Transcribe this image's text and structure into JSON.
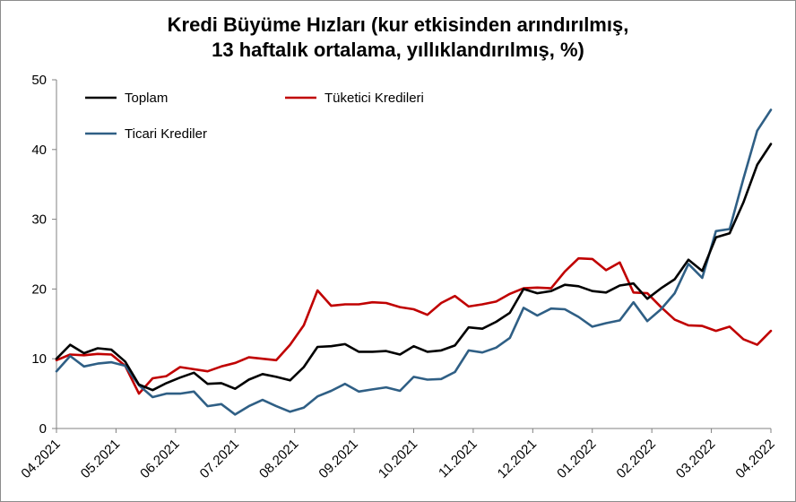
{
  "chart_data": {
    "type": "line",
    "title_line1": "Kredi Büyüme Hızları (kur etkisinden arındırılmış,",
    "title_line2": "13 haftalık ortalama, yıllıklandırılmış, %)",
    "xlabel": "",
    "ylabel": "",
    "ylim": [
      0,
      50
    ],
    "yticks": [
      0,
      10,
      20,
      30,
      40,
      50
    ],
    "grid": false,
    "legend": "top-left",
    "x_tick_labels": [
      "04.2021",
      "05.2021",
      "06.2021",
      "07.2021",
      "08.2021",
      "09.2021",
      "10.2021",
      "11.2021",
      "12.2021",
      "01.2022",
      "02.2022",
      "03.2022",
      "04.2022"
    ],
    "series": [
      {
        "name": "Toplam",
        "color": "#000000",
        "values": [
          10.0,
          12.0,
          10.8,
          11.5,
          11.3,
          9.6,
          6.3,
          5.5,
          6.5,
          7.3,
          8.0,
          6.4,
          6.5,
          5.7,
          7.0,
          7.8,
          7.4,
          6.9,
          8.8,
          11.7,
          11.8,
          12.1,
          11.0,
          11.0,
          11.1,
          10.6,
          11.8,
          11.0,
          11.2,
          11.9,
          14.5,
          14.3,
          15.3,
          16.6,
          20.0,
          19.4,
          19.7,
          20.6,
          20.4,
          19.7,
          19.5,
          20.5,
          20.8,
          18.6,
          20.1,
          21.4,
          24.2,
          22.6,
          27.4,
          28.0,
          32.4,
          37.8,
          40.8
        ]
      },
      {
        "name": "Tüketici Kredileri",
        "color": "#c00000",
        "values": [
          9.8,
          10.6,
          10.5,
          10.7,
          10.6,
          9.0,
          5.0,
          7.2,
          7.5,
          8.8,
          8.5,
          8.2,
          8.9,
          9.4,
          10.2,
          10.0,
          9.8,
          12.0,
          14.8,
          19.8,
          17.6,
          17.8,
          17.8,
          18.1,
          18.0,
          17.4,
          17.1,
          16.3,
          18.0,
          19.0,
          17.5,
          17.8,
          18.2,
          19.3,
          20.1,
          20.2,
          20.1,
          22.5,
          24.4,
          24.3,
          22.7,
          23.8,
          19.5,
          19.4,
          17.4,
          15.6,
          14.8,
          14.7,
          14.0,
          14.6,
          12.8,
          12.0,
          14.0
        ]
      },
      {
        "name": "Ticari Krediler",
        "color": "#2f5f85",
        "values": [
          8.2,
          10.4,
          8.9,
          9.3,
          9.5,
          9.0,
          6.2,
          4.5,
          5.0,
          5.0,
          5.3,
          3.2,
          3.5,
          2.0,
          3.2,
          4.1,
          3.2,
          2.4,
          3.0,
          4.6,
          5.4,
          6.4,
          5.3,
          5.6,
          5.9,
          5.4,
          7.4,
          7.0,
          7.1,
          8.1,
          11.2,
          10.9,
          11.6,
          13.0,
          17.3,
          16.2,
          17.2,
          17.1,
          16.0,
          14.6,
          15.1,
          15.5,
          18.1,
          15.4,
          17.1,
          19.4,
          23.6,
          21.6,
          28.3,
          28.6,
          35.8,
          42.7,
          45.7
        ]
      }
    ]
  }
}
